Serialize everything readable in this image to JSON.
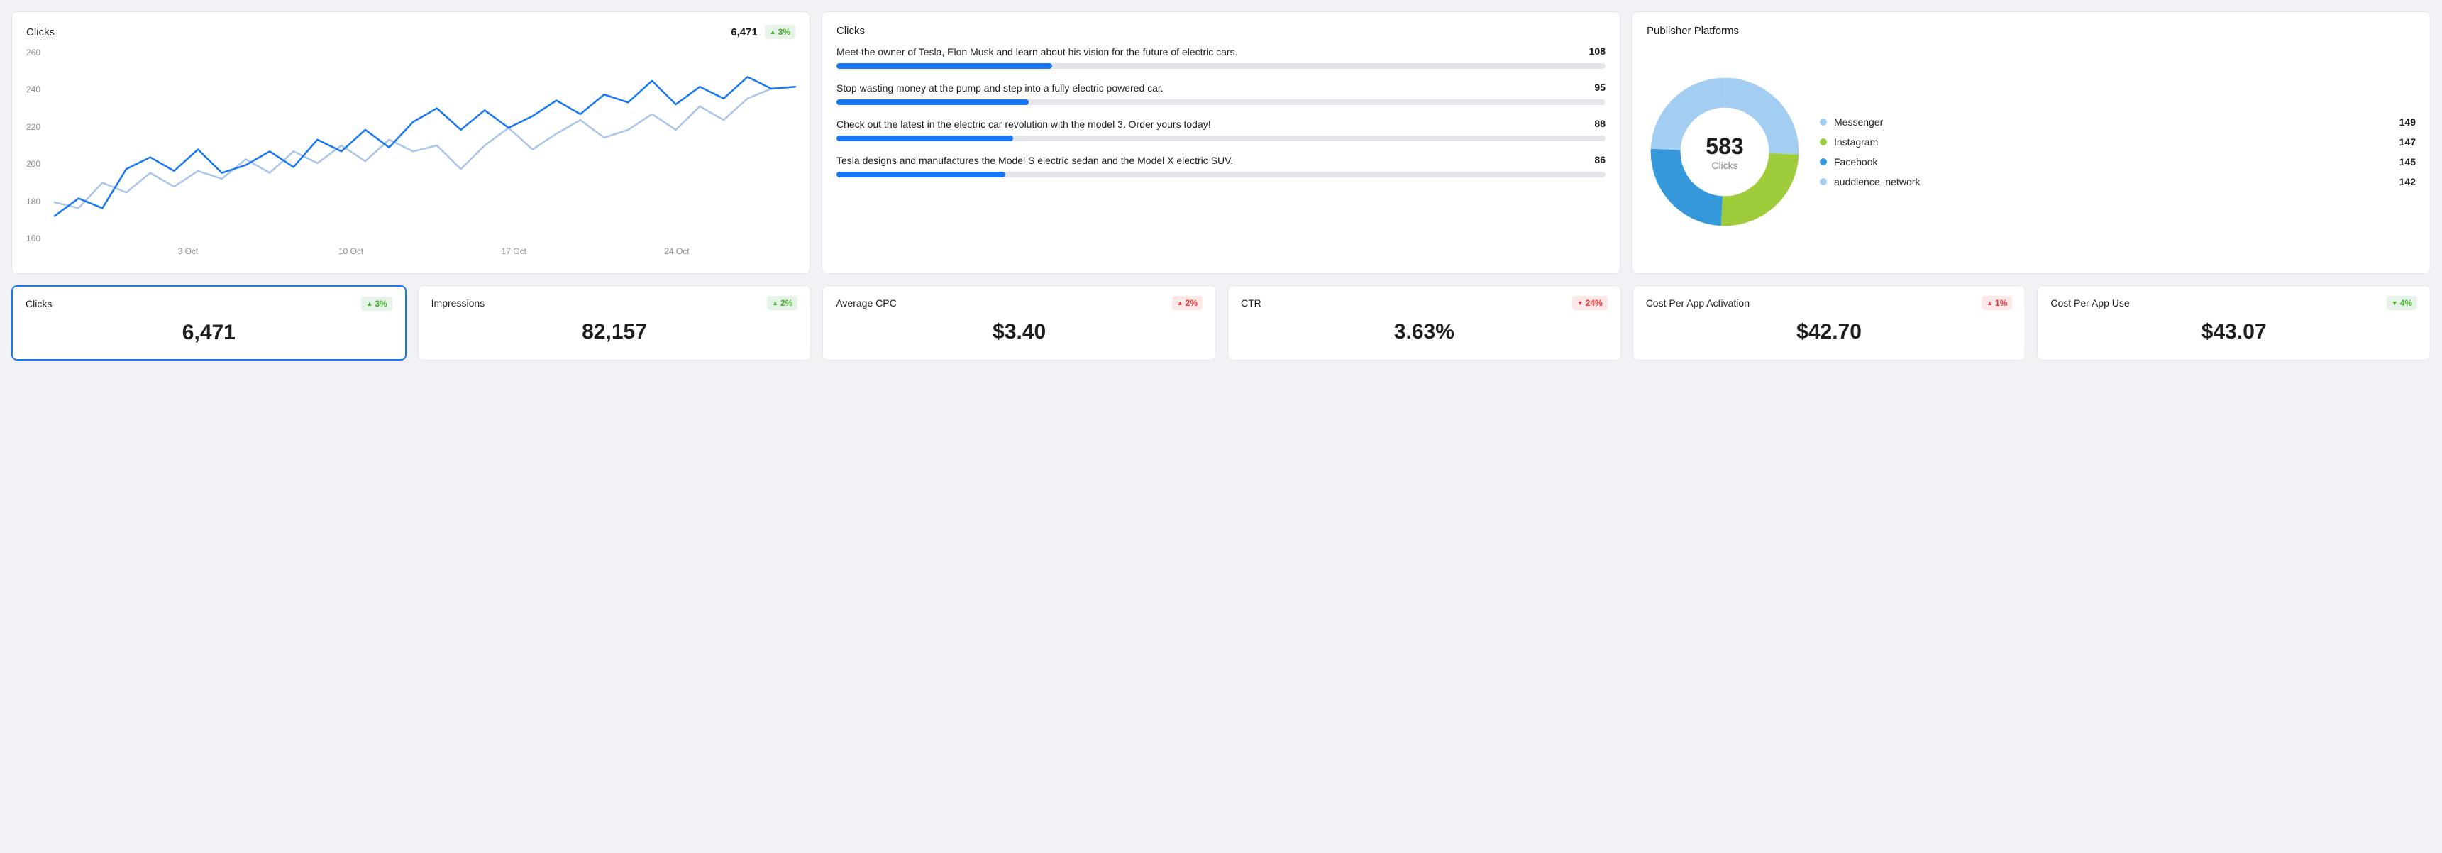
{
  "colors": {
    "page_bg": "#f0f2f5",
    "card_bg": "#ffffff",
    "card_border": "#e4e6eb",
    "text_primary": "#1c1e21",
    "text_muted": "#8a8d91",
    "badge_up_bg": "#e7f3e8",
    "badge_up_fg": "#42b72a",
    "badge_down_bg": "#fde8e8",
    "badge_down_fg": "#fa383e",
    "bar_track": "#e4e6eb",
    "bar_fill": "#1877f2",
    "active_border": "#1877f2"
  },
  "clicks_chart": {
    "title": "Clicks",
    "value": "6,471",
    "badge": {
      "dir": "up",
      "text": "3%"
    },
    "type": "line",
    "ylim": [
      160,
      260
    ],
    "yticks": [
      260,
      240,
      220,
      200,
      180,
      160
    ],
    "xticks": [
      {
        "label": "3 Oct",
        "pos": 0.18
      },
      {
        "label": "10 Oct",
        "pos": 0.4
      },
      {
        "label": "17 Oct",
        "pos": 0.62
      },
      {
        "label": "24 Oct",
        "pos": 0.84
      }
    ],
    "series": [
      {
        "name": "current",
        "color": "#1877f2",
        "width": 2.5,
        "data": [
          174,
          183,
          178,
          198,
          204,
          197,
          208,
          196,
          200,
          207,
          199,
          213,
          207,
          218,
          209,
          222,
          229,
          218,
          228,
          219,
          225,
          233,
          226,
          236,
          232,
          243,
          231,
          240,
          234,
          245,
          239,
          240
        ]
      },
      {
        "name": "previous",
        "color": "#A9C5EB",
        "width": 2.5,
        "data": [
          181,
          178,
          191,
          186,
          196,
          189,
          197,
          193,
          203,
          196,
          207,
          201,
          210,
          202,
          213,
          207,
          210,
          198,
          210,
          219,
          208,
          216,
          223,
          214,
          218,
          226,
          218,
          230,
          223,
          234,
          239,
          240
        ]
      }
    ]
  },
  "bars_card": {
    "title": "Clicks",
    "max": 108,
    "items": [
      {
        "text": "Meet the owner of Tesla, Elon Musk and learn about his vision for the future of electric cars.",
        "value": 108,
        "fill_pct": 28
      },
      {
        "text": "Stop wasting money at the pump and step into a fully electric powered car.",
        "value": 95,
        "fill_pct": 25
      },
      {
        "text": "Check out the latest in the electric car revolution with the model 3. Order yours today!",
        "value": 88,
        "fill_pct": 23
      },
      {
        "text": "Tesla designs and manufactures the Model S electric sedan and the Model X electric SUV.",
        "value": 86,
        "fill_pct": 22
      }
    ]
  },
  "donut_card": {
    "title": "Publisher Platforms",
    "center_value": "583",
    "center_label": "Clicks",
    "type": "donut",
    "inner_radius_pct": 62,
    "slices": [
      {
        "name": "Messenger",
        "value": 149,
        "color": "#A3CEF1"
      },
      {
        "name": "Instagram",
        "value": 147,
        "color": "#9FCC3B"
      },
      {
        "name": "Facebook",
        "value": 145,
        "color": "#3498DB"
      },
      {
        "name": "auddience_network",
        "value": 142,
        "color": "#A3CEF1"
      }
    ]
  },
  "metrics": [
    {
      "title": "Clicks",
      "value": "6,471",
      "badge": {
        "dir": "up",
        "text": "3%"
      },
      "active": true
    },
    {
      "title": "Impressions",
      "value": "82,157",
      "badge": {
        "dir": "up",
        "text": "2%"
      }
    },
    {
      "title": "Average CPC",
      "value": "$3.40",
      "badge": {
        "dir": "up",
        "text": "2%",
        "variant": "down"
      }
    },
    {
      "title": "CTR",
      "value": "3.63%",
      "badge": {
        "dir": "down",
        "text": "24%"
      }
    },
    {
      "title": "Cost Per App Activation",
      "value": "$42.70",
      "badge": {
        "dir": "up",
        "text": "1%",
        "variant": "down"
      }
    },
    {
      "title": "Cost Per App Use",
      "value": "$43.07",
      "badge": {
        "dir": "down",
        "text": "4%",
        "variant": "up"
      }
    }
  ]
}
